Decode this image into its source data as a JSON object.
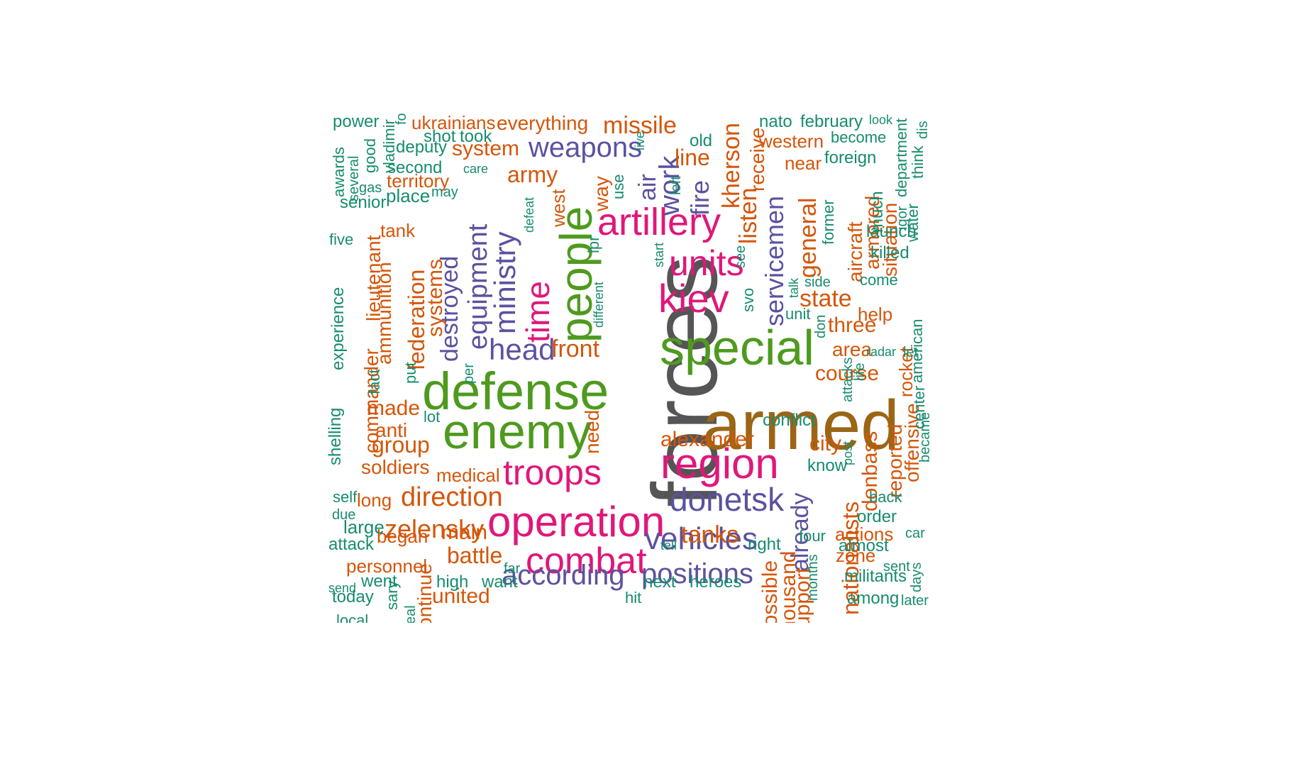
{
  "palette": {
    "grey": "#555555",
    "brown": "#9A6616",
    "green": "#4E9A1E",
    "magenta": "#E0177A",
    "purple": "#5B52A0",
    "orange": "#D4560A",
    "teal": "#178C6E"
  },
  "words": [
    {
      "text": "forces",
      "color": "grey"
    },
    {
      "text": "armed",
      "color": "brown"
    },
    {
      "text": "defense",
      "color": "green"
    },
    {
      "text": "enemy",
      "color": "green"
    },
    {
      "text": "special",
      "color": "green"
    },
    {
      "text": "people",
      "color": "green"
    },
    {
      "text": "operation",
      "color": "magenta"
    },
    {
      "text": "region",
      "color": "magenta"
    },
    {
      "text": "combat",
      "color": "magenta"
    },
    {
      "text": "troops",
      "color": "magenta"
    },
    {
      "text": "artillery",
      "color": "magenta"
    },
    {
      "text": "kiev",
      "color": "magenta"
    },
    {
      "text": "units",
      "color": "magenta"
    },
    {
      "text": "time",
      "color": "magenta"
    },
    {
      "text": "donetsk",
      "color": "purple"
    },
    {
      "text": "vehicles",
      "color": "purple"
    },
    {
      "text": "positions",
      "color": "purple"
    },
    {
      "text": "according",
      "color": "purple"
    },
    {
      "text": "head",
      "color": "purple"
    },
    {
      "text": "weapons",
      "color": "purple"
    },
    {
      "text": "ministry",
      "color": "purple"
    },
    {
      "text": "equipment",
      "color": "purple"
    },
    {
      "text": "destroyed",
      "color": "purple"
    },
    {
      "text": "servicemen",
      "color": "purple"
    },
    {
      "text": "work",
      "color": "purple"
    },
    {
      "text": "air",
      "color": "purple"
    },
    {
      "text": "fire",
      "color": "purple"
    },
    {
      "text": "already",
      "color": "purple"
    },
    {
      "text": "missile",
      "color": "orange"
    },
    {
      "text": "army",
      "color": "orange"
    },
    {
      "text": "system",
      "color": "orange"
    },
    {
      "text": "front",
      "color": "orange"
    },
    {
      "text": "direction",
      "color": "orange"
    },
    {
      "text": "zelensky",
      "color": "orange"
    },
    {
      "text": "group",
      "color": "orange"
    },
    {
      "text": "made",
      "color": "orange"
    },
    {
      "text": "anti",
      "color": "orange"
    },
    {
      "text": "soldiers",
      "color": "orange"
    },
    {
      "text": "battle",
      "color": "orange"
    },
    {
      "text": "main",
      "color": "orange"
    },
    {
      "text": "united",
      "color": "orange"
    },
    {
      "text": "tanks",
      "color": "orange"
    },
    {
      "text": "line",
      "color": "orange"
    },
    {
      "text": "kherson",
      "color": "orange"
    },
    {
      "text": "listen",
      "color": "orange"
    },
    {
      "text": "general",
      "color": "orange"
    },
    {
      "text": "state",
      "color": "orange"
    },
    {
      "text": "three",
      "color": "orange"
    },
    {
      "text": "area",
      "color": "orange"
    },
    {
      "text": "course",
      "color": "orange"
    },
    {
      "text": "city",
      "color": "orange"
    },
    {
      "text": "alexander",
      "color": "orange"
    },
    {
      "text": "donbass",
      "color": "orange"
    },
    {
      "text": "nationalists",
      "color": "orange"
    },
    {
      "text": "federation",
      "color": "orange"
    },
    {
      "text": "systems",
      "color": "orange"
    },
    {
      "text": "ammunition",
      "color": "orange"
    },
    {
      "text": "lieutenant",
      "color": "orange"
    },
    {
      "text": "commander",
      "color": "orange"
    },
    {
      "text": "long",
      "color": "orange"
    },
    {
      "text": "began",
      "color": "orange"
    },
    {
      "text": "personnel",
      "color": "orange"
    },
    {
      "text": "medical",
      "color": "orange"
    },
    {
      "text": "territory",
      "color": "orange"
    },
    {
      "text": "tank",
      "color": "orange"
    },
    {
      "text": "ukrainians",
      "color": "orange"
    },
    {
      "text": "everything",
      "color": "orange"
    },
    {
      "text": "western",
      "color": "orange"
    },
    {
      "text": "near",
      "color": "orange"
    },
    {
      "text": "aircraft",
      "color": "orange"
    },
    {
      "text": "armored",
      "color": "orange"
    },
    {
      "text": "situation",
      "color": "orange"
    },
    {
      "text": "help",
      "color": "orange"
    },
    {
      "text": "reported",
      "color": "orange"
    },
    {
      "text": "offensive",
      "color": "orange"
    },
    {
      "text": "rocket",
      "color": "orange"
    },
    {
      "text": "actions",
      "color": "orange"
    },
    {
      "text": "zone",
      "color": "orange"
    },
    {
      "text": "need",
      "color": "orange"
    },
    {
      "text": "way",
      "color": "orange"
    },
    {
      "text": "west",
      "color": "orange"
    },
    {
      "text": "receive",
      "color": "orange"
    },
    {
      "text": "possible",
      "color": "orange"
    },
    {
      "text": "support",
      "color": "orange"
    },
    {
      "text": "thousand",
      "color": "orange"
    },
    {
      "text": "continue",
      "color": "orange"
    },
    {
      "text": "power",
      "color": "teal"
    },
    {
      "text": "vladimir",
      "color": "teal"
    },
    {
      "text": "shot",
      "color": "teal"
    },
    {
      "text": "took",
      "color": "teal"
    },
    {
      "text": "deputy",
      "color": "teal"
    },
    {
      "text": "second",
      "color": "teal"
    },
    {
      "text": "care",
      "color": "teal"
    },
    {
      "text": "may",
      "color": "teal"
    },
    {
      "text": "place",
      "color": "teal"
    },
    {
      "text": "senior",
      "color": "teal"
    },
    {
      "text": "awards",
      "color": "teal"
    },
    {
      "text": "several",
      "color": "teal"
    },
    {
      "text": "good",
      "color": "teal"
    },
    {
      "text": "gas",
      "color": "teal"
    },
    {
      "text": "five",
      "color": "teal"
    },
    {
      "text": "experience",
      "color": "teal"
    },
    {
      "text": "fact",
      "color": "teal"
    },
    {
      "text": "put",
      "color": "teal"
    },
    {
      "text": "per",
      "color": "teal"
    },
    {
      "text": "lot",
      "color": "teal"
    },
    {
      "text": "shelling",
      "color": "teal"
    },
    {
      "text": "self",
      "color": "teal"
    },
    {
      "text": "due",
      "color": "teal"
    },
    {
      "text": "large",
      "color": "teal"
    },
    {
      "text": "attack",
      "color": "teal"
    },
    {
      "text": "send",
      "color": "teal"
    },
    {
      "text": "went",
      "color": "teal"
    },
    {
      "text": "today",
      "color": "teal"
    },
    {
      "text": "local",
      "color": "teal"
    },
    {
      "text": "high",
      "color": "teal"
    },
    {
      "text": "want",
      "color": "teal"
    },
    {
      "text": "far",
      "color": "teal"
    },
    {
      "text": "hit",
      "color": "teal"
    },
    {
      "text": "next",
      "color": "teal"
    },
    {
      "text": "heroes",
      "color": "teal"
    },
    {
      "text": "tell",
      "color": "teal"
    },
    {
      "text": "right",
      "color": "teal"
    },
    {
      "text": "defeat",
      "color": "teal"
    },
    {
      "text": "lpr",
      "color": "teal"
    },
    {
      "text": "different",
      "color": "teal"
    },
    {
      "text": "use",
      "color": "teal"
    },
    {
      "text": "live",
      "color": "teal"
    },
    {
      "text": "old",
      "color": "teal"
    },
    {
      "text": "left",
      "color": "teal"
    },
    {
      "text": "start",
      "color": "teal"
    },
    {
      "text": "see",
      "color": "teal"
    },
    {
      "text": "svo",
      "color": "teal"
    },
    {
      "text": "nato",
      "color": "teal"
    },
    {
      "text": "february",
      "color": "teal"
    },
    {
      "text": "look",
      "color": "teal"
    },
    {
      "text": "become",
      "color": "teal"
    },
    {
      "text": "foreign",
      "color": "teal"
    },
    {
      "text": "department",
      "color": "teal"
    },
    {
      "text": "think",
      "color": "teal"
    },
    {
      "text": "dis",
      "color": "teal"
    },
    {
      "text": "former",
      "color": "teal"
    },
    {
      "text": "much",
      "color": "teal"
    },
    {
      "text": "igor",
      "color": "teal"
    },
    {
      "text": "water",
      "color": "teal"
    },
    {
      "text": "launch",
      "color": "teal"
    },
    {
      "text": "killed",
      "color": "teal"
    },
    {
      "text": "side",
      "color": "teal"
    },
    {
      "text": "talk",
      "color": "teal"
    },
    {
      "text": "come",
      "color": "teal"
    },
    {
      "text": "unit",
      "color": "teal"
    },
    {
      "text": "don",
      "color": "teal"
    },
    {
      "text": "american",
      "color": "teal"
    },
    {
      "text": "radar",
      "color": "teal"
    },
    {
      "text": "let",
      "color": "teal"
    },
    {
      "text": "attacks",
      "color": "teal"
    },
    {
      "text": "life",
      "color": "teal"
    },
    {
      "text": "center",
      "color": "teal"
    },
    {
      "text": "conflict",
      "color": "teal"
    },
    {
      "text": "know",
      "color": "teal"
    },
    {
      "text": "post",
      "color": "teal"
    },
    {
      "text": "back",
      "color": "teal"
    },
    {
      "text": "became",
      "color": "teal"
    },
    {
      "text": "order",
      "color": "teal"
    },
    {
      "text": "car",
      "color": "teal"
    },
    {
      "text": "almost",
      "color": "teal"
    },
    {
      "text": "sent",
      "color": "teal"
    },
    {
      "text": "days",
      "color": "teal"
    },
    {
      "text": "months",
      "color": "teal"
    },
    {
      "text": "four",
      "color": "teal"
    },
    {
      "text": "militants",
      "color": "teal"
    },
    {
      "text": "among",
      "color": "teal"
    },
    {
      "text": "later",
      "color": "teal"
    },
    {
      "text": "fou",
      "color": "teal"
    },
    {
      "text": "sary",
      "color": "teal"
    },
    {
      "text": "eal",
      "color": "teal"
    }
  ]
}
